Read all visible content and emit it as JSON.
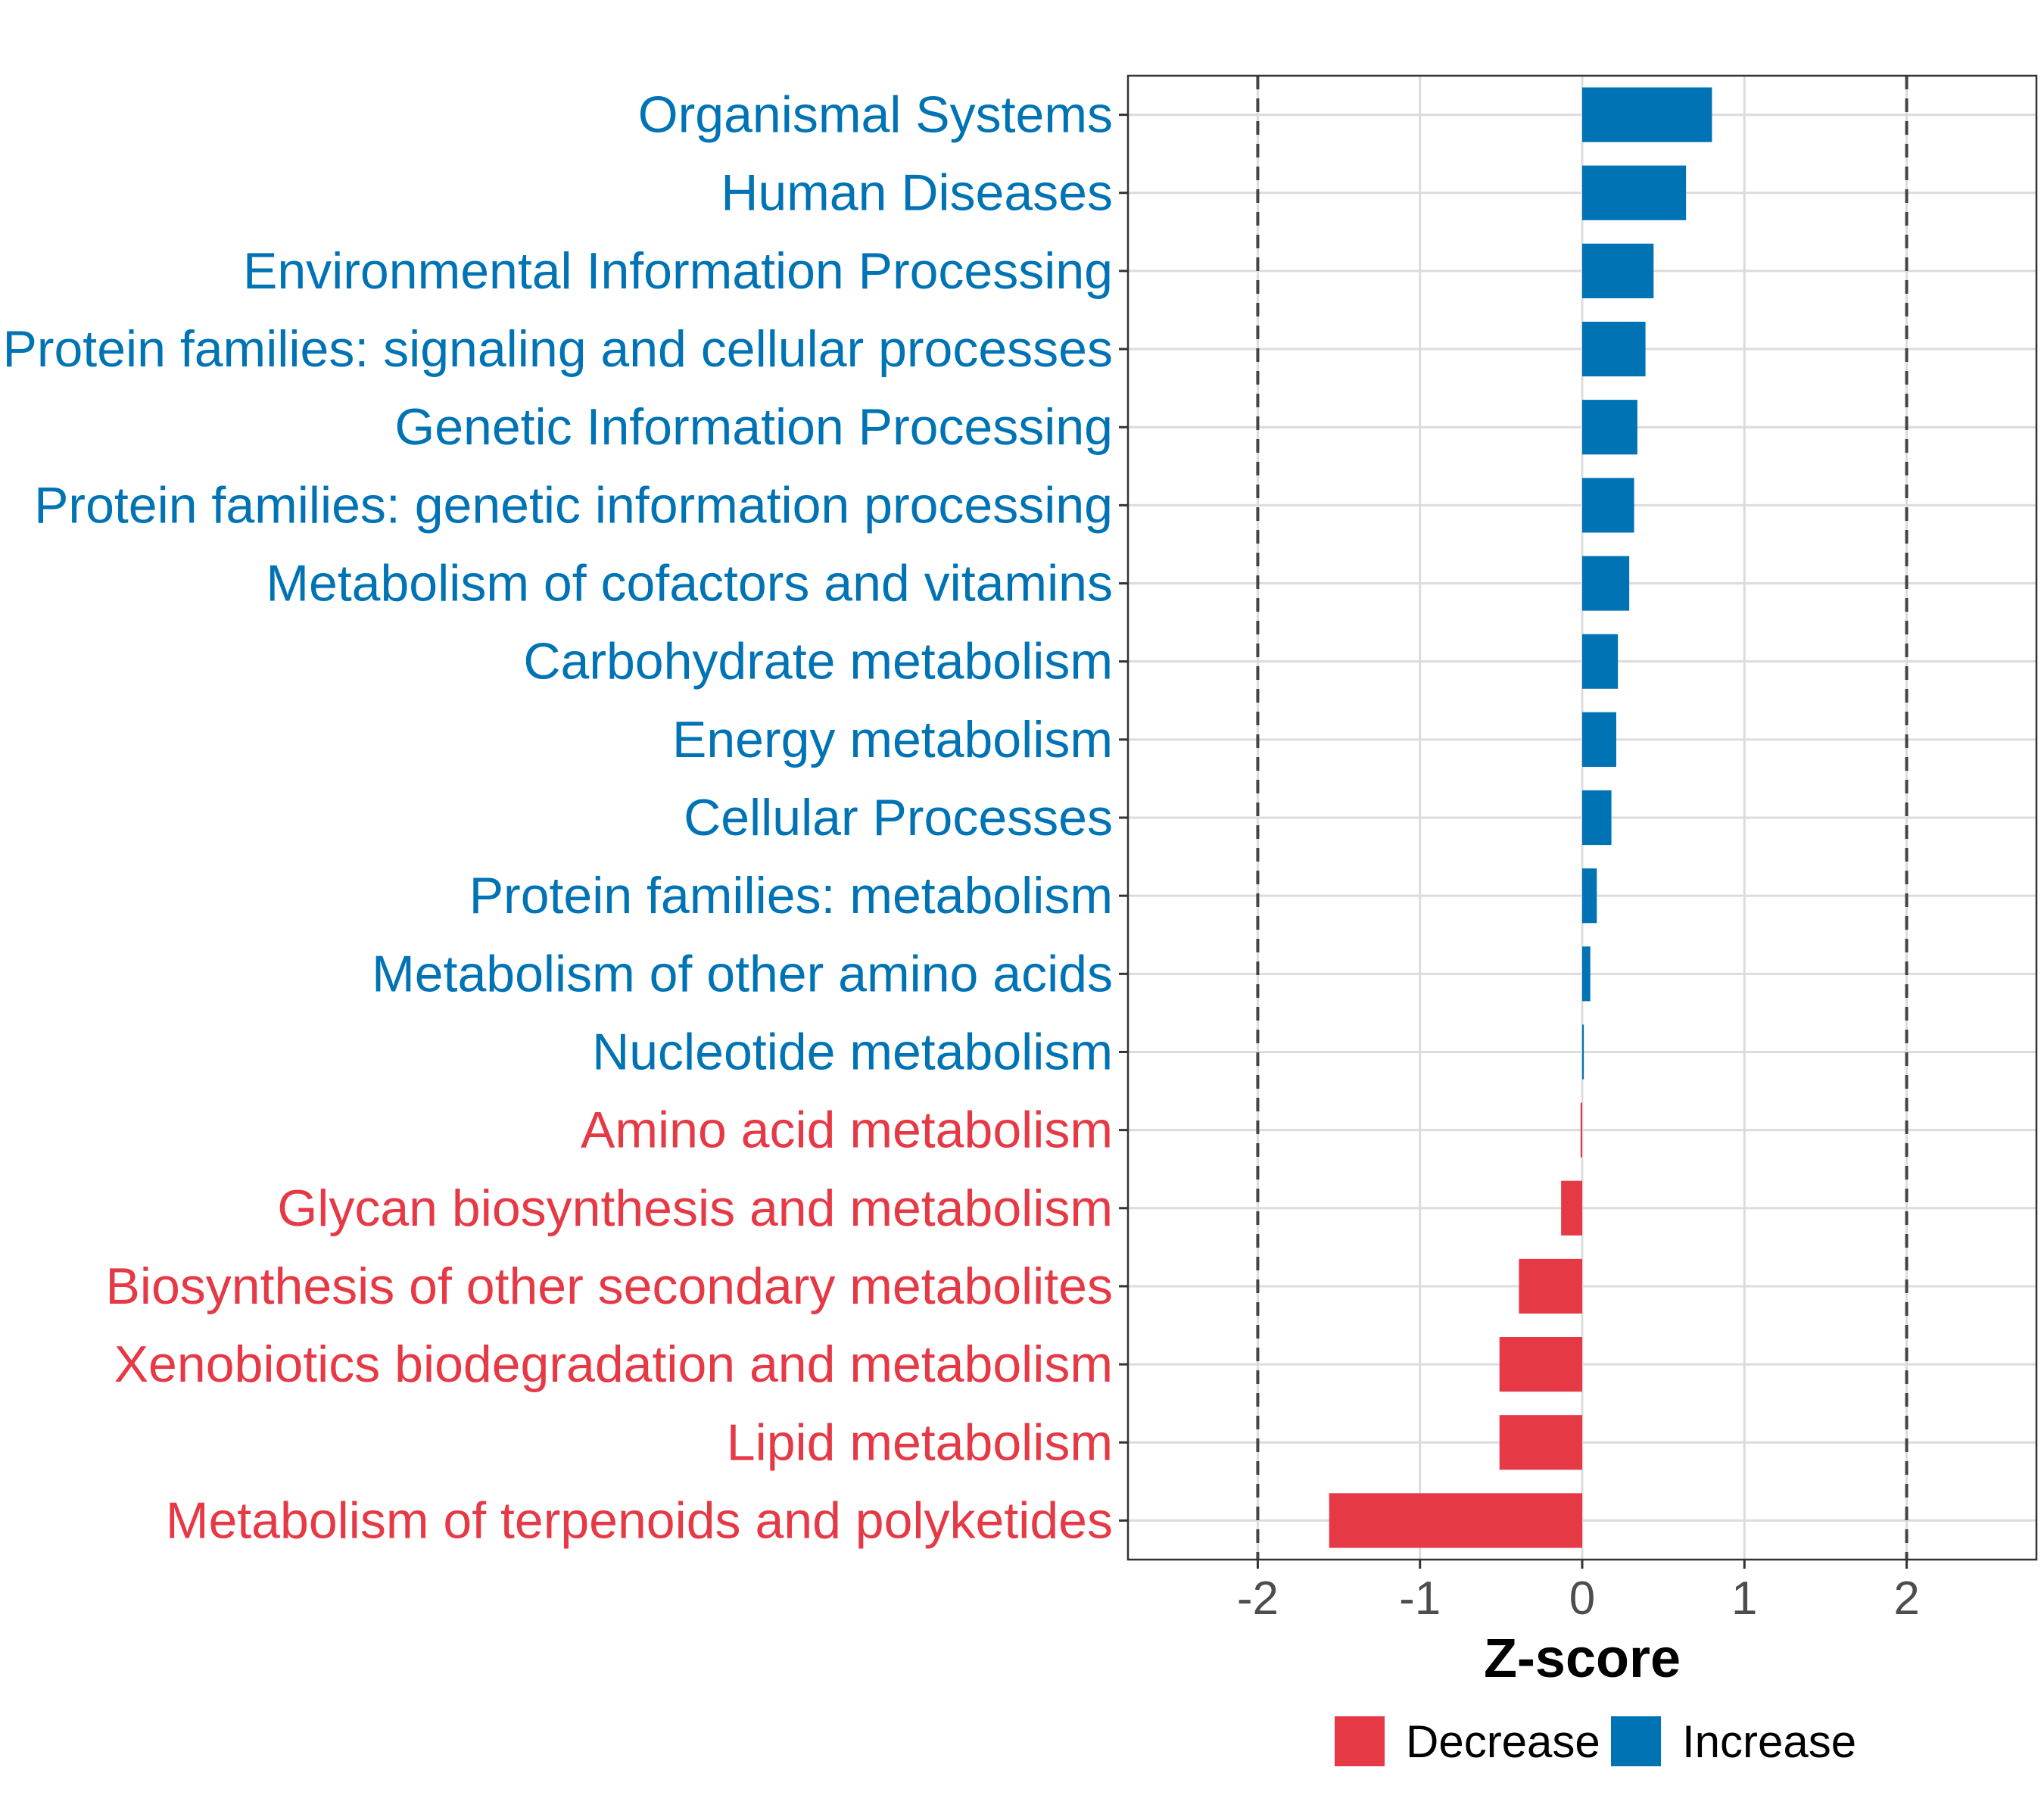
{
  "chart_data": {
    "type": "bar",
    "orientation": "horizontal",
    "xlabel": "Z-score",
    "ylabel": "",
    "xlim": [
      -2.8,
      2.8
    ],
    "xticks": [
      -2,
      -1,
      0,
      1,
      2
    ],
    "xtick_labels": [
      "-2",
      "-1",
      "0",
      "1",
      "2"
    ],
    "reference_lines": [
      -2,
      2
    ],
    "grid": true,
    "legend_position": "bottom",
    "colors": {
      "Decrease": "#e63946",
      "Increase": "#0073b5"
    },
    "legend": [
      {
        "label": "Decrease",
        "group": "Decrease"
      },
      {
        "label": "Increase",
        "group": "Increase"
      }
    ],
    "categories": [
      "Organismal Systems",
      "Human Diseases",
      "Environmental Information Processing",
      "Protein families: signaling and cellular processes",
      "Genetic Information Processing",
      "Protein families: genetic information processing",
      "Metabolism of cofactors and vitamins",
      "Carbohydrate metabolism",
      "Energy metabolism",
      "Cellular Processes",
      "Protein families: metabolism",
      "Metabolism of other amino acids",
      "Nucleotide metabolism",
      "Amino acid metabolism",
      "Glycan biosynthesis and metabolism",
      "Biosynthesis of other secondary metabolites",
      "Xenobiotics biodegradation and metabolism",
      "Lipid metabolism",
      "Metabolism of terpenoids and polyketides"
    ],
    "values": [
      0.8,
      0.64,
      0.44,
      0.39,
      0.34,
      0.32,
      0.29,
      0.22,
      0.21,
      0.18,
      0.09,
      0.05,
      0.01,
      -0.01,
      -0.13,
      -0.39,
      -0.51,
      -0.51,
      -1.56
    ],
    "groups": [
      "Increase",
      "Increase",
      "Increase",
      "Increase",
      "Increase",
      "Increase",
      "Increase",
      "Increase",
      "Increase",
      "Increase",
      "Increase",
      "Increase",
      "Increase",
      "Decrease",
      "Decrease",
      "Decrease",
      "Decrease",
      "Decrease",
      "Decrease"
    ]
  }
}
